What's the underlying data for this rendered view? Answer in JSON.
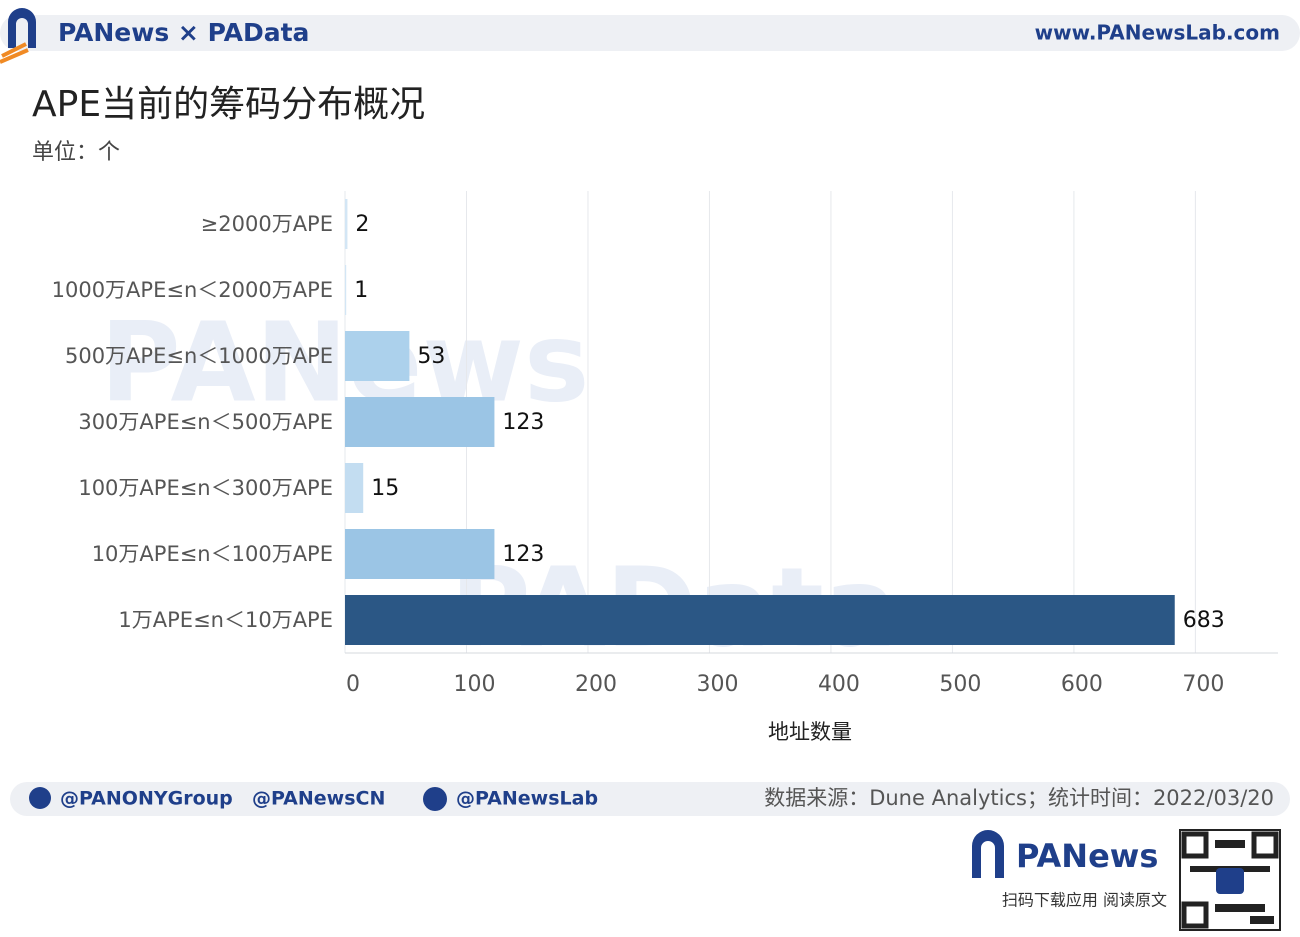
{
  "header": {
    "brand": "PANews × PAData",
    "url": "www.PANewsLab.com"
  },
  "watermarks": [
    "PANews",
    "PAData"
  ],
  "chart_data": {
    "type": "hbar",
    "title": "APE当前的筹码分布概况",
    "subtitle": "单位：个",
    "x_label": "地址数量",
    "categories": [
      "≥2000万APE",
      "1000万APE≤n＜2000万APE",
      "500万APE≤n＜1000万APE",
      "300万APE≤n＜500万APE",
      "100万APE≤n＜300万APE",
      "10万APE≤n＜100万APE",
      "1万APE≤n＜10万APE"
    ],
    "values": [
      2,
      1,
      53,
      123,
      15,
      123,
      683
    ],
    "colors": [
      "#d3e6f5",
      "#d3e6f5",
      "#acd1ec",
      "#9bc5e5",
      "#c3ddf1",
      "#9bc5e5",
      "#2b5785"
    ],
    "xlim": [
      0,
      768
    ],
    "xticks": [
      0,
      100,
      200,
      300,
      400,
      500,
      600,
      700
    ],
    "grid": true
  },
  "footer": {
    "twitter": [
      "@PANONYGroup",
      "@PANewsCN"
    ],
    "facebook": "@PANewsLab",
    "source": "数据来源：Dune Analytics；统计时间：2022/03/20",
    "app_brand": "PANews",
    "app_hint": "扫码下载应用  阅读原文"
  }
}
